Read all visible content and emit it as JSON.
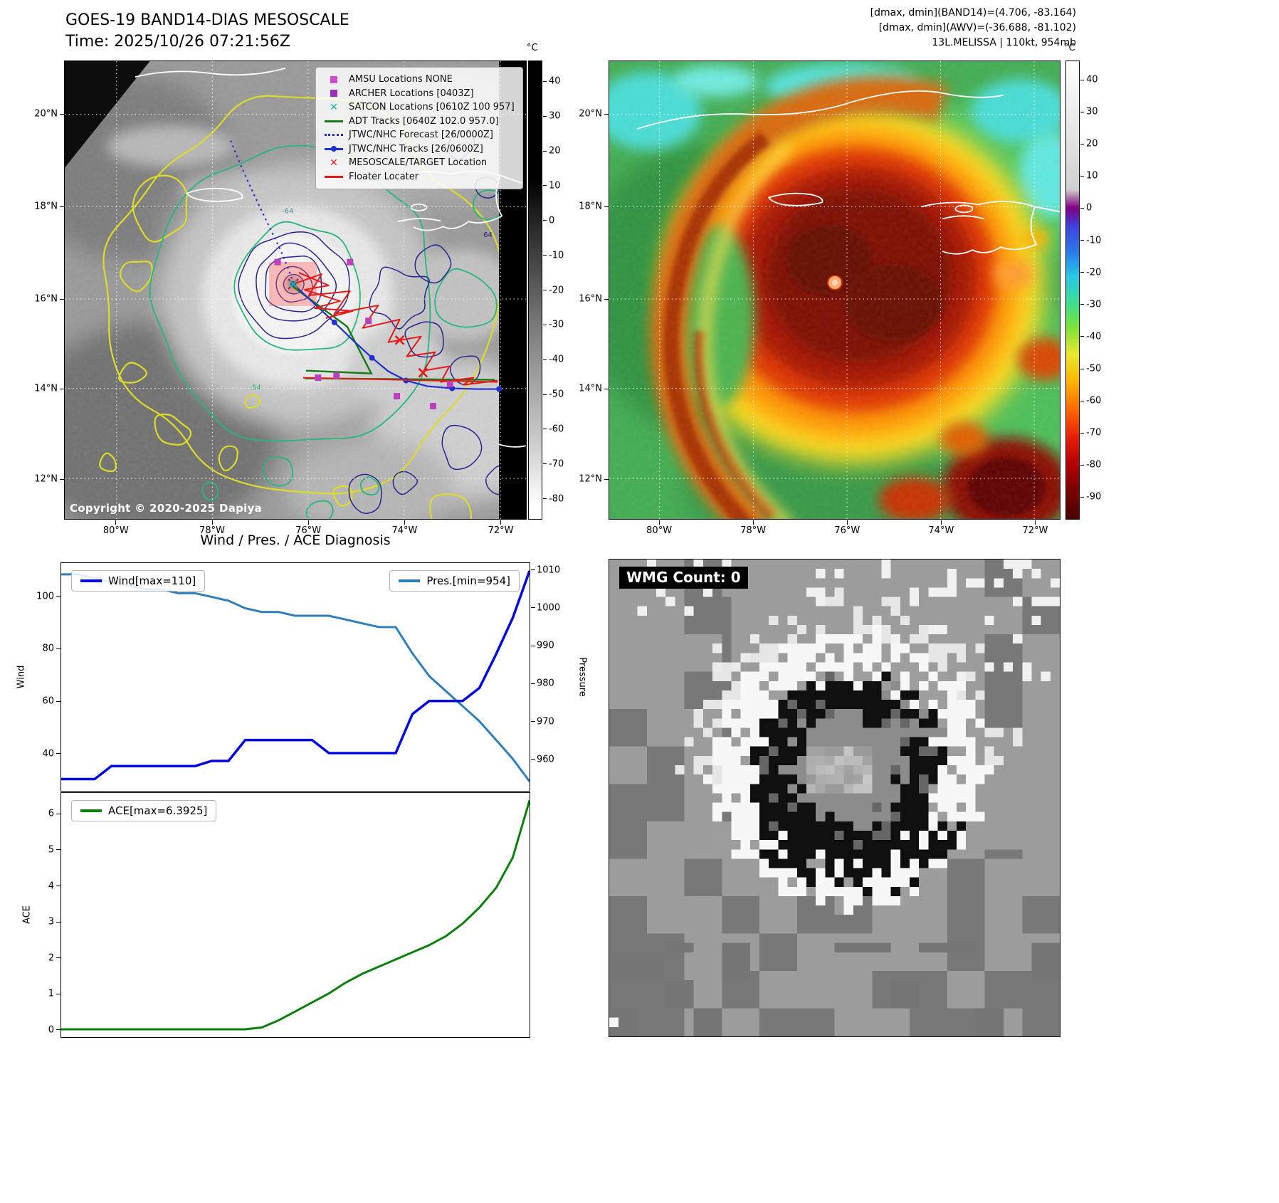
{
  "panel1": {
    "title": "GOES-19 BAND14-DIAS MESOSCALE",
    "time": "Time: 2025/10/26 07:21:56Z",
    "copyright": "Copyright © 2020-2025 Dapiya",
    "lat_ticks": [
      "20°N",
      "18°N",
      "16°N",
      "14°N",
      "12°N"
    ],
    "lon_ticks": [
      "80°W",
      "78°W",
      "76°W",
      "74°W",
      "72°W"
    ],
    "colorbar": {
      "unit": "°C",
      "ticks": [
        40,
        30,
        20,
        10,
        0,
        -10,
        -20,
        -30,
        -40,
        -50,
        -60,
        -70,
        -80
      ]
    },
    "legend": [
      {
        "label": "AMSU Locations NONE",
        "marker": "square",
        "color": "#cc4ecc"
      },
      {
        "label": "ARCHER Locations [0403Z]",
        "marker": "square",
        "color": "#9b30b5"
      },
      {
        "label": "SATCON Locations [0610Z 100 957]",
        "marker": "x",
        "color": "#17b3a3"
      },
      {
        "label": "ADT Tracks [0640Z 102.0 957.0]",
        "marker": "line",
        "color": "#127a12"
      },
      {
        "label": "JTWC/NHC Forecast [26/0000Z]",
        "marker": "dotted-line",
        "color": "#2a2ad0"
      },
      {
        "label": "JTWC/NHC Tracks [26/0600Z]",
        "marker": "line-dot",
        "color": "#1f2fd0"
      },
      {
        "label": "MESOSCALE/TARGET Location",
        "marker": "x",
        "color": "#e31a1a"
      },
      {
        "label": "Floater Locater",
        "marker": "line",
        "color": "#e31a1a"
      }
    ],
    "contour_labels": [
      {
        "text": "-64",
        "color": "#4a8f8f"
      },
      {
        "text": "64",
        "color": "#26268e"
      },
      {
        "text": "54",
        "color": "#25b87a"
      }
    ]
  },
  "panel2": {
    "headers": [
      "[dmax, dmin](BAND14)=(4.706, -83.164)",
      "[dmax, dmin](AWV)=(-36.688, -81.102)",
      "13L.MELISSA | 110kt, 954mb"
    ],
    "lat_ticks": [
      "20°N",
      "18°N",
      "16°N",
      "14°N",
      "12°N"
    ],
    "lon_ticks": [
      "80°W",
      "78°W",
      "76°W",
      "74°W",
      "72°W"
    ],
    "colorbar": {
      "unit": "°C",
      "ticks": [
        40,
        30,
        20,
        10,
        0,
        -10,
        -20,
        -30,
        -40,
        -50,
        -60,
        -70,
        -80,
        -90
      ]
    }
  },
  "panel3": {
    "title": "Wind / Pres. / ACE Diagnosis"
  },
  "panel4": {
    "label": "WMG Count: 0"
  },
  "chart_data": [
    {
      "type": "line",
      "title": "Wind / Pres. / ACE Diagnosis",
      "series": [
        {
          "name": "Wind[max=110]",
          "axis": "left",
          "color": "#0008dd",
          "values": [
            30,
            30,
            30,
            35,
            35,
            35,
            35,
            35,
            35,
            37,
            37,
            45,
            45,
            45,
            45,
            45,
            40,
            40,
            40,
            40,
            40,
            55,
            60,
            60,
            60,
            65,
            78,
            92,
            110
          ]
        },
        {
          "name": "Pres.[min=954]",
          "axis": "right",
          "color": "#2e7ebc",
          "values": [
            1009,
            1009,
            1008,
            1007,
            1006,
            1005,
            1005,
            1004,
            1004,
            1003,
            1002,
            1000,
            999,
            999,
            998,
            998,
            998,
            997,
            996,
            995,
            995,
            988,
            982,
            978,
            974,
            970,
            965,
            960,
            954
          ]
        }
      ],
      "left_axis": {
        "label": "Wind",
        "ticks": [
          40,
          60,
          80,
          100
        ],
        "ylim": [
          25.5,
          113
        ]
      },
      "right_axis": {
        "label": "Pressure",
        "ticks": [
          960,
          970,
          980,
          990,
          1000,
          1010
        ],
        "ylim": [
          951.5,
          1012
        ]
      },
      "legend_position": "upper-left-and-upper-right",
      "grid": false
    },
    {
      "type": "line",
      "series": [
        {
          "name": "ACE[max=6.3925]",
          "axis": "left",
          "color": "#0a800a",
          "values": [
            0,
            0,
            0,
            0,
            0,
            0,
            0,
            0,
            0,
            0,
            0,
            0,
            0.05,
            0.25,
            0.5,
            0.75,
            1.0,
            1.3,
            1.55,
            1.75,
            1.95,
            2.15,
            2.35,
            2.6,
            2.95,
            3.4,
            3.95,
            4.8,
            6.3925
          ]
        }
      ],
      "left_axis": {
        "label": "ACE",
        "ticks": [
          0,
          1,
          2,
          3,
          4,
          5,
          6
        ],
        "ylim": [
          -0.22,
          6.6
        ]
      },
      "legend_position": "upper-left",
      "grid": false
    }
  ]
}
